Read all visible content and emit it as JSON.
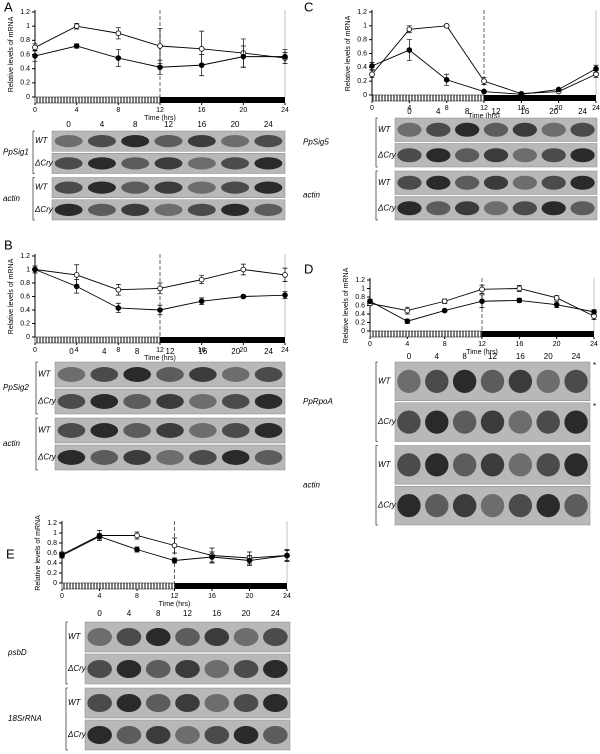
{
  "chart_data": [
    {
      "type": "line",
      "panel": "A",
      "y_label": "Relative levels of mRNA",
      "x_label": "Time (hrs)",
      "x": [
        0,
        4,
        8,
        12,
        16,
        20,
        24
      ],
      "xlim": [
        0,
        24
      ],
      "xticks": [
        0,
        4,
        8,
        12,
        16,
        20,
        24
      ],
      "ylim": [
        0,
        1.2
      ],
      "yticks": [
        0,
        0.2,
        0.4,
        0.6,
        0.8,
        1,
        1.2
      ],
      "night_start": 12,
      "series": [
        {
          "marker": "open",
          "color": "#000000",
          "values": [
            0.7,
            1.0,
            0.9,
            0.72,
            0.68,
            0.62,
            0.55
          ],
          "errors": [
            0.05,
            0.04,
            0.08,
            0.25,
            0.25,
            0.2,
            0.08
          ]
        },
        {
          "marker": "filled",
          "color": "#000000",
          "values": [
            0.58,
            0.72,
            0.55,
            0.42,
            0.45,
            0.57,
            0.57
          ],
          "errors": [
            0.08,
            0.03,
            0.12,
            0.1,
            0.15,
            0.15,
            0.1
          ]
        }
      ],
      "lanes": [
        "0",
        "4",
        "8",
        "12",
        "16",
        "20",
        "24"
      ],
      "blots": [
        {
          "gene": "PpSig1",
          "rows": [
            "WT",
            "ΔCry"
          ]
        },
        {
          "gene": "actin",
          "rows": [
            "WT",
            "ΔCry"
          ]
        }
      ]
    },
    {
      "type": "line",
      "panel": "B",
      "y_label": "Relative levels of mRNA",
      "x_label": "Time (hrs)",
      "x": [
        0,
        4,
        8,
        12,
        16,
        20,
        24
      ],
      "xlim": [
        0,
        24
      ],
      "xticks": [
        0,
        4,
        8,
        12,
        16,
        20,
        24
      ],
      "ylim": [
        0,
        1.2
      ],
      "yticks": [
        0,
        0.2,
        0.4,
        0.6,
        0.8,
        1,
        1.2
      ],
      "night_start": 12,
      "series": [
        {
          "marker": "open",
          "color": "#000000",
          "values": [
            1.0,
            0.92,
            0.7,
            0.72,
            0.85,
            1.0,
            0.92
          ],
          "errors": [
            0.05,
            0.15,
            0.08,
            0.08,
            0.06,
            0.08,
            0.1
          ]
        },
        {
          "marker": "filled",
          "color": "#000000",
          "values": [
            1.0,
            0.75,
            0.43,
            0.4,
            0.53,
            0.6,
            0.62
          ],
          "errors": [
            0.05,
            0.1,
            0.07,
            0.07,
            0.05,
            0.02,
            0.05
          ]
        }
      ],
      "lanes": [
        "0",
        "4",
        "8",
        "12",
        "16",
        "20",
        "24"
      ],
      "blots": [
        {
          "gene": "PpSig2",
          "rows": [
            "WT",
            "ΔCry"
          ]
        },
        {
          "gene": "actin",
          "rows": [
            "WT",
            "ΔCry"
          ]
        }
      ]
    },
    {
      "type": "line",
      "panel": "C",
      "y_label": "Relative levels of mRNA",
      "x_label": "Time (hrs)",
      "x": [
        0,
        4,
        8,
        12,
        16,
        20,
        24
      ],
      "xlim": [
        0,
        24
      ],
      "xticks": [
        0,
        4,
        8,
        12,
        16,
        20,
        24
      ],
      "ylim": [
        0,
        1.2
      ],
      "yticks": [
        0,
        0.2,
        0.4,
        0.6,
        0.8,
        1,
        1.2
      ],
      "night_start": 12,
      "series": [
        {
          "marker": "open",
          "color": "#000000",
          "values": [
            0.3,
            0.95,
            1.0,
            0.2,
            0.02,
            0.05,
            0.3
          ],
          "errors": [
            0.05,
            0.05,
            0.02,
            0.05,
            0.01,
            0.01,
            0.05
          ]
        },
        {
          "marker": "filled",
          "color": "#000000",
          "values": [
            0.42,
            0.65,
            0.22,
            0.05,
            0.01,
            0.08,
            0.38
          ],
          "errors": [
            0.05,
            0.15,
            0.08,
            0.02,
            0.01,
            0.01,
            0.05
          ]
        }
      ],
      "lanes": [
        "0",
        "4",
        "8",
        "12",
        "16",
        "20",
        "24"
      ],
      "blots": [
        {
          "gene": "PpSig5",
          "rows": [
            "WT",
            "ΔCry"
          ]
        },
        {
          "gene": "actin",
          "rows": [
            "WT",
            "ΔCry"
          ]
        }
      ]
    },
    {
      "type": "line",
      "panel": "D",
      "y_label": "Relative levels of mRNA",
      "x_label": "Time (hrs)",
      "x": [
        0,
        4,
        8,
        12,
        16,
        20,
        24
      ],
      "xlim": [
        0,
        24
      ],
      "xticks": [
        0,
        4,
        8,
        12,
        16,
        20,
        24
      ],
      "ylim": [
        0,
        1.2
      ],
      "yticks": [
        0,
        0.2,
        0.4,
        0.6,
        0.8,
        1,
        1.2
      ],
      "night_start": 12,
      "series": [
        {
          "marker": "open",
          "color": "#000000",
          "values": [
            0.65,
            0.48,
            0.7,
            0.98,
            1.0,
            0.78,
            0.35
          ],
          "errors": [
            0.05,
            0.08,
            0.05,
            0.1,
            0.07,
            0.05,
            0.08
          ]
        },
        {
          "marker": "filled",
          "color": "#000000",
          "values": [
            0.7,
            0.23,
            0.48,
            0.7,
            0.72,
            0.62,
            0.45
          ],
          "errors": [
            0.05,
            0.05,
            0.03,
            0.15,
            0.05,
            0.07,
            0.05
          ]
        }
      ],
      "lanes": [
        "0",
        "4",
        "8",
        "12",
        "16",
        "20",
        "24"
      ],
      "blots": [
        {
          "gene": "PpRpoA",
          "rows": [
            "WT",
            "ΔCry"
          ],
          "row_marks": [
            "*",
            "*"
          ]
        },
        {
          "gene": "actin",
          "rows": [
            "WT",
            "ΔCry"
          ]
        }
      ]
    },
    {
      "type": "line",
      "panel": "E",
      "y_label": "Relative levels of mRNA",
      "x_label": "Time (hrs)",
      "x": [
        0,
        4,
        8,
        12,
        16,
        20,
        24
      ],
      "xlim": [
        0,
        24
      ],
      "xticks": [
        0,
        4,
        8,
        12,
        16,
        20,
        24
      ],
      "ylim": [
        0,
        1.2
      ],
      "yticks": [
        0,
        0.2,
        0.4,
        0.6,
        0.8,
        1,
        1.2
      ],
      "night_start": 12,
      "series": [
        {
          "marker": "open",
          "color": "#000000",
          "values": [
            0.57,
            0.95,
            0.95,
            0.75,
            0.55,
            0.5,
            0.55
          ],
          "errors": [
            0.05,
            0.1,
            0.07,
            0.15,
            0.15,
            0.12,
            0.12
          ]
        },
        {
          "marker": "filled",
          "color": "#000000",
          "values": [
            0.55,
            0.93,
            0.67,
            0.45,
            0.52,
            0.45,
            0.55
          ],
          "errors": [
            0.05,
            0.05,
            0.05,
            0.05,
            0.1,
            0.1,
            0.1
          ]
        }
      ],
      "lanes": [
        "0",
        "4",
        "8",
        "12",
        "16",
        "20",
        "24"
      ],
      "blots": [
        {
          "gene": "psbD",
          "rows": [
            "WT",
            "ΔCry"
          ]
        },
        {
          "gene": "18SrRNA",
          "rows": [
            "WT",
            "ΔCry"
          ]
        }
      ]
    }
  ]
}
